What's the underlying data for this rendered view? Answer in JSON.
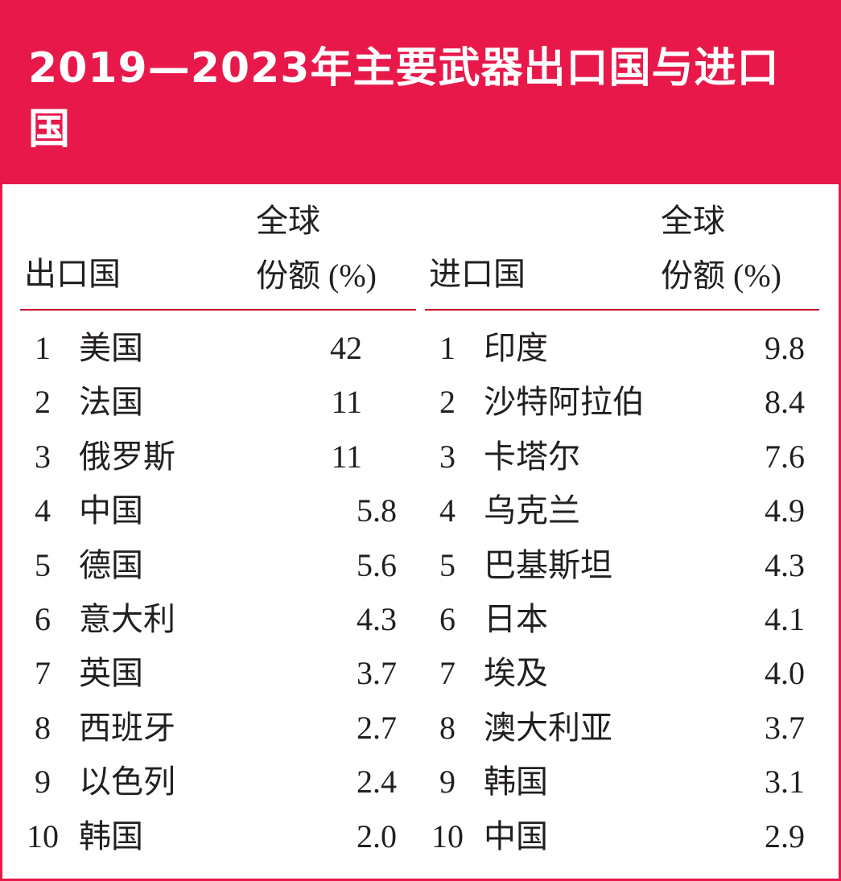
{
  "header": {
    "title": "2019—2023年主要武器出口国与进口国"
  },
  "tables": [
    {
      "columns": [
        "出口国",
        "全球\n份额 (%)"
      ],
      "rows": [
        [
          "1",
          "美国",
          "42"
        ],
        [
          "2",
          "法国",
          "11"
        ],
        [
          "3",
          "俄罗斯",
          "11"
        ],
        [
          "4",
          "中国",
          "5.8"
        ],
        [
          "5",
          "德国",
          "5.6"
        ],
        [
          "6",
          "意大利",
          "4.3"
        ],
        [
          "7",
          "英国",
          "3.7"
        ],
        [
          "8",
          "西班牙",
          "2.7"
        ],
        [
          "9",
          "以色列",
          "2.4"
        ],
        [
          "10",
          "韩国",
          "2.0"
        ]
      ]
    },
    {
      "columns": [
        "进口国",
        "全球\n份额 (%)"
      ],
      "rows": [
        [
          "1",
          "印度",
          "9.8"
        ],
        [
          "2",
          "沙特阿拉伯",
          "8.4"
        ],
        [
          "3",
          "卡塔尔",
          "7.6"
        ],
        [
          "4",
          "乌克兰",
          "4.9"
        ],
        [
          "5",
          "巴基斯坦",
          "4.3"
        ],
        [
          "6",
          "日本",
          "4.1"
        ],
        [
          "7",
          "埃及",
          "4.0"
        ],
        [
          "8",
          "澳大利亚",
          "3.7"
        ],
        [
          "9",
          "韩国",
          "3.1"
        ],
        [
          "10",
          "中国",
          "2.9"
        ]
      ]
    }
  ]
}
